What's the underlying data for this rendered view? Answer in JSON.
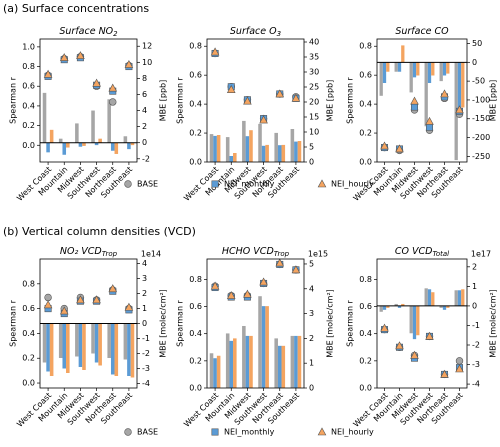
{
  "sections": [
    {
      "heading": "(a) Surface concentrations",
      "legend": [
        "BASE",
        "NEI_monthly",
        "NEI_hourly"
      ]
    },
    {
      "heading": "(b) Vertical column densities (VCD)",
      "legend": [
        "BASE",
        "NEI_monthly",
        "NEI_hourly"
      ]
    }
  ],
  "chart_data": [
    {
      "type": "bar-scatter",
      "title": "Surface NO",
      "title_subscript": "2",
      "ylabel": "Spearman r",
      "y2label": "MBE [ppb]",
      "categories": [
        "West Coast",
        "Mountain",
        "Midwest",
        "Southwest",
        "Northeast",
        "Southeast"
      ],
      "ylim": [
        -0.17,
        1.08
      ],
      "yticks": [
        {
          "value": 0,
          "label": "0.0"
        },
        0.2,
        0.4,
        0.6,
        0.8,
        {
          "value": 1,
          "label": "1.0"
        }
      ],
      "y2lim": [
        -2.4,
        12.9
      ],
      "y2ticks": [
        -2,
        0,
        2,
        4,
        6,
        8,
        10,
        12
      ],
      "series": [
        {
          "color": "#a6a6a6",
          "marker": "circle",
          "values": [
            0.71,
            0.88,
            0.9,
            0.6,
            0.44,
            0.81
          ],
          "bar_values": [
            6.2,
            0.5,
            2.4,
            4.0,
            5.4,
            0.8
          ]
        },
        {
          "color": "#5b9bd5",
          "marker": "square",
          "values": [
            0.7,
            0.87,
            0.89,
            0.61,
            0.55,
            0.8
          ],
          "bar_values": [
            -1.2,
            -1.5,
            -0.5,
            -0.3,
            -1.0,
            -0.8
          ]
        },
        {
          "color": "#f4a460",
          "marker": "triangle",
          "values": [
            0.72,
            0.89,
            0.91,
            0.63,
            0.58,
            0.82
          ],
          "bar_values": [
            1.6,
            -0.6,
            -0.4,
            0.5,
            -1.4,
            -0.3
          ]
        }
      ]
    },
    {
      "type": "bar-scatter",
      "title": "Surface O",
      "title_subscript": "3",
      "ylabel": "Spearman r",
      "y2label": "MBE [ppb]",
      "categories": [
        "West Coast",
        "Mountain",
        "Midwest",
        "Southwest",
        "Northeast",
        "Southeast"
      ],
      "ylim": [
        0,
        0.85
      ],
      "yticks": [
        {
          "value": 0,
          "label": "0.0"
        },
        0.2,
        0.4,
        0.6,
        0.8
      ],
      "y2lim": [
        0,
        41
      ],
      "y2ticks": [
        0,
        5,
        10,
        15,
        20,
        25,
        30,
        35,
        40
      ],
      "series": [
        {
          "color": "#a6a6a6",
          "marker": "circle",
          "values": [
            0.75,
            0.52,
            0.43,
            0.3,
            0.47,
            0.45
          ],
          "bar_values": [
            9.3,
            8.3,
            13.7,
            12.7,
            9.7,
            11
          ]
        },
        {
          "color": "#5b9bd5",
          "marker": "square",
          "values": [
            0.75,
            0.52,
            0.43,
            0.3,
            0.47,
            0.44
          ],
          "bar_values": [
            8.7,
            2,
            8.6,
            5.4,
            5.6,
            6.8
          ]
        },
        {
          "color": "#f4a460",
          "marker": "triangle",
          "values": [
            0.76,
            0.5,
            0.42,
            0.29,
            0.47,
            0.44
          ],
          "bar_values": [
            9,
            3,
            10.6,
            5.7,
            5.7,
            7
          ]
        }
      ]
    },
    {
      "type": "bar-scatter",
      "title": "Surface CO",
      "ylabel": "Spearman r",
      "y2label": "MBE [ppb]",
      "categories": [
        "West Coast",
        "Mountain",
        "Midwest",
        "Southwest",
        "Northeast",
        "Southeast"
      ],
      "ylim": [
        0,
        0.85
      ],
      "yticks": [
        {
          "value": 0,
          "label": "0.0"
        },
        0.2,
        0.4,
        0.6,
        0.8
      ],
      "y2lim": [
        -265,
        62
      ],
      "y2ticks": [
        -250,
        -200,
        -150,
        -100,
        -50,
        0,
        50
      ],
      "series": [
        {
          "color": "#a6a6a6",
          "marker": "circle",
          "values": [
            0.1,
            0.08,
            0.36,
            0.22,
            0.44,
            0.33
          ],
          "bar_values": [
            -89,
            -25,
            -80,
            -170,
            -50,
            -260
          ]
        },
        {
          "color": "#5b9bd5",
          "marker": "square",
          "values": [
            0.1,
            0.09,
            0.38,
            0.24,
            0.45,
            0.35
          ],
          "bar_values": [
            -55,
            -25,
            -40,
            -55,
            -35,
            -125
          ]
        },
        {
          "color": "#f4a460",
          "marker": "triangle",
          "values": [
            0.11,
            0.09,
            0.42,
            0.28,
            0.47,
            0.36
          ],
          "bar_values": [
            -25,
            45,
            -35,
            -35,
            -30,
            -120
          ]
        }
      ]
    },
    {
      "type": "bar-scatter",
      "title": "NO₂ VCD",
      "title_subscript": "Trop",
      "ylabel": "Spearman r",
      "y2label": "MBE [molec/cm²]",
      "y2_offset_label": "1e14",
      "categories": [
        "West Coast",
        "Mountain",
        "Midwest",
        "Southwest",
        "Northeast",
        "Southeast"
      ],
      "ylim": [
        -0.04,
        1.0
      ],
      "yticks": [
        {
          "value": 0,
          "label": "0.0"
        },
        0.2,
        0.4,
        0.6,
        0.8
      ],
      "y2lim": [
        -4.3,
        4.3
      ],
      "y2ticks": [
        -4,
        -3,
        -2,
        -1,
        0,
        1,
        2,
        3,
        4
      ],
      "series": [
        {
          "color": "#a6a6a6",
          "marker": "circle",
          "values": [
            0.69,
            0.6,
            0.69,
            0.67,
            0.75,
            0.6
          ],
          "bar_values": [
            -2.6,
            -2.3,
            -2.2,
            -2.0,
            -2.3,
            -2.4
          ]
        },
        {
          "color": "#5b9bd5",
          "marker": "square",
          "values": [
            0.6,
            0.56,
            0.66,
            0.66,
            0.74,
            0.59
          ],
          "bar_values": [
            -3.2,
            -3.0,
            -2.9,
            -2.6,
            -3.4,
            -3.5
          ]
        },
        {
          "color": "#f4a460",
          "marker": "triangle",
          "values": [
            0.63,
            0.58,
            0.67,
            0.67,
            0.76,
            0.61
          ],
          "bar_values": [
            -3.5,
            -3.3,
            -3.1,
            -2.8,
            -3.5,
            -3.6
          ]
        }
      ]
    },
    {
      "type": "bar-scatter",
      "title": "HCHO VCD",
      "title_subscript": "Trop",
      "ylabel": "Spearman r",
      "y2label": "MBE [molec/cm²]",
      "y2_offset_label": "1e15",
      "categories": [
        "West Coast",
        "Mountain",
        "Midwest",
        "Southwest",
        "Northeast",
        "Southeast"
      ],
      "ylim": [
        0,
        0.95
      ],
      "yticks": [
        {
          "value": 0,
          "label": "0.0"
        },
        0.2,
        0.4,
        0.6,
        0.8
      ],
      "y2lim": [
        0,
        5.2
      ],
      "y2ticks": [
        0,
        1,
        2,
        3,
        4,
        5
      ],
      "series": [
        {
          "color": "#a6a6a6",
          "marker": "circle",
          "values": [
            0.75,
            0.68,
            0.68,
            0.77,
            0.91,
            0.87
          ],
          "bar_values": [
            1.4,
            2.2,
            2.5,
            3.7,
            2.0,
            2.1
          ]
        },
        {
          "color": "#5b9bd5",
          "marker": "square",
          "values": [
            0.74,
            0.67,
            0.67,
            0.77,
            0.91,
            0.87
          ],
          "bar_values": [
            1.2,
            1.9,
            2.1,
            3.3,
            1.7,
            2.1
          ]
        },
        {
          "color": "#f4a460",
          "marker": "triangle",
          "values": [
            0.75,
            0.68,
            0.69,
            0.78,
            0.92,
            0.87
          ],
          "bar_values": [
            1.3,
            2.0,
            2.1,
            3.3,
            1.7,
            2.1
          ]
        }
      ]
    },
    {
      "type": "bar-scatter",
      "title": "CO VCD",
      "title_subscript": "Total",
      "ylabel": "Spearman r",
      "y2label": "MBE [molec/cm²]",
      "y2_offset_label": "1e17",
      "categories": [
        "West Coast",
        "Mountain",
        "Midwest",
        "Southwest",
        "Northeast",
        "Southeast"
      ],
      "ylim": [
        0,
        0.95
      ],
      "yticks": [
        {
          "value": 0,
          "label": "0.0"
        },
        0.2,
        0.4,
        0.6,
        0.8
      ],
      "y2lim": [
        -4.2,
        2.4
      ],
      "y2ticks": [
        -4,
        -3,
        -2,
        -1,
        0,
        1,
        2
      ],
      "series": [
        {
          "color": "#a6a6a6",
          "marker": "circle",
          "values": [
            0.43,
            0.3,
            0.24,
            0.38,
            0.1,
            0.2
          ],
          "bar_values": [
            -0.3,
            0.1,
            -1.4,
            0.9,
            -0.1,
            0.8
          ]
        },
        {
          "color": "#5b9bd5",
          "marker": "square",
          "values": [
            0.43,
            0.3,
            0.22,
            0.38,
            0.1,
            0.15
          ],
          "bar_values": [
            -0.2,
            -0.1,
            -1.7,
            0.85,
            -0.2,
            0.8
          ]
        },
        {
          "color": "#f4a460",
          "marker": "triangle",
          "values": [
            0.44,
            0.31,
            0.24,
            0.38,
            0.1,
            0.14
          ],
          "bar_values": [
            -0.1,
            0.1,
            -1.5,
            0.7,
            -0.1,
            0.85
          ]
        }
      ]
    }
  ]
}
